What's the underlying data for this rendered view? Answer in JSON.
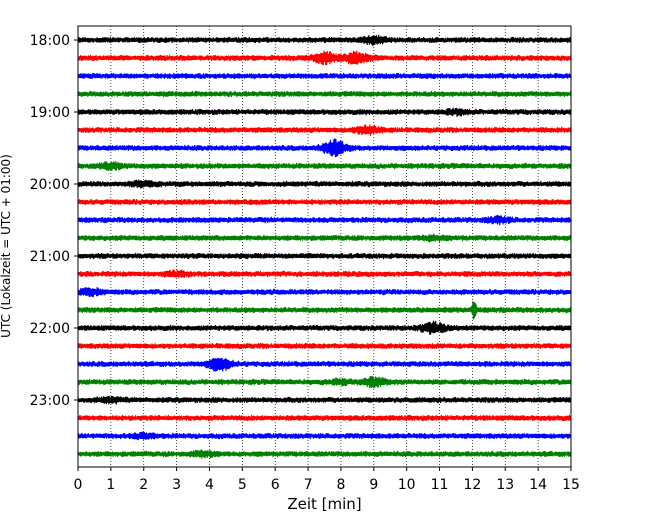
{
  "chart_data": {
    "type": "line",
    "title": "",
    "xlabel": "Zeit  [min]",
    "ylabel": "UTC (Lokalzeit = UTC + 01:00)",
    "xlim": [
      0,
      15
    ],
    "x_ticks": [
      "0",
      "1",
      "2",
      "3",
      "4",
      "5",
      "6",
      "7",
      "8",
      "9",
      "10",
      "11",
      "12",
      "13",
      "14",
      "15"
    ],
    "y_tick_labels": [
      "18:00",
      "19:00",
      "20:00",
      "21:00",
      "22:00",
      "23:00"
    ],
    "grid": "vertical dotted",
    "color_cycle": [
      "#000000",
      "#ff0000",
      "#0000ff",
      "#008000"
    ],
    "traces": [
      {
        "start": "18:00",
        "color": "#000000",
        "events": [
          {
            "t": 9.0,
            "amp": 0.5
          }
        ]
      },
      {
        "start": "18:15",
        "color": "#ff0000",
        "events": [
          {
            "t": 7.5,
            "amp": 0.8
          },
          {
            "t": 8.5,
            "amp": 0.9
          }
        ]
      },
      {
        "start": "18:30",
        "color": "#0000ff",
        "events": []
      },
      {
        "start": "18:45",
        "color": "#008000",
        "events": []
      },
      {
        "start": "19:00",
        "color": "#000000",
        "events": [
          {
            "t": 11.5,
            "amp": 0.3
          }
        ]
      },
      {
        "start": "19:15",
        "color": "#ff0000",
        "events": [
          {
            "t": 8.8,
            "amp": 0.6
          }
        ]
      },
      {
        "start": "19:30",
        "color": "#0000ff",
        "events": [
          {
            "t": 7.8,
            "amp": 1.1
          }
        ]
      },
      {
        "start": "19:45",
        "color": "#008000",
        "events": [
          {
            "t": 1.0,
            "amp": 0.4
          }
        ]
      },
      {
        "start": "20:00",
        "color": "#000000",
        "events": [
          {
            "t": 2.0,
            "amp": 0.4
          }
        ]
      },
      {
        "start": "20:15",
        "color": "#ff0000",
        "events": []
      },
      {
        "start": "20:30",
        "color": "#0000ff",
        "events": [
          {
            "t": 12.8,
            "amp": 0.4
          }
        ]
      },
      {
        "start": "20:45",
        "color": "#008000",
        "events": [
          {
            "t": 10.8,
            "amp": 0.3
          }
        ]
      },
      {
        "start": "21:00",
        "color": "#000000",
        "events": []
      },
      {
        "start": "21:15",
        "color": "#ff0000",
        "events": [
          {
            "t": 3.0,
            "amp": 0.3
          }
        ]
      },
      {
        "start": "21:30",
        "color": "#0000ff",
        "events": [
          {
            "t": 0.4,
            "amp": 0.4
          }
        ]
      },
      {
        "start": "21:45",
        "color": "#008000",
        "events": [
          {
            "t": 12.05,
            "amp": 1.5
          }
        ]
      },
      {
        "start": "22:00",
        "color": "#000000",
        "events": [
          {
            "t": 10.8,
            "amp": 0.8
          }
        ]
      },
      {
        "start": "22:15",
        "color": "#ff0000",
        "events": []
      },
      {
        "start": "22:30",
        "color": "#0000ff",
        "events": [
          {
            "t": 4.3,
            "amp": 0.9
          }
        ]
      },
      {
        "start": "22:45",
        "color": "#008000",
        "events": [
          {
            "t": 9.0,
            "amp": 0.6
          },
          {
            "t": 8.0,
            "amp": 0.3
          }
        ]
      },
      {
        "start": "23:00",
        "color": "#000000",
        "events": [
          {
            "t": 1.0,
            "amp": 0.3
          }
        ]
      },
      {
        "start": "23:15",
        "color": "#ff0000",
        "events": []
      },
      {
        "start": "23:30",
        "color": "#0000ff",
        "events": [
          {
            "t": 2.0,
            "amp": 0.3
          }
        ]
      },
      {
        "start": "23:45",
        "color": "#008000",
        "events": [
          {
            "t": 3.8,
            "amp": 0.3
          }
        ]
      }
    ]
  }
}
